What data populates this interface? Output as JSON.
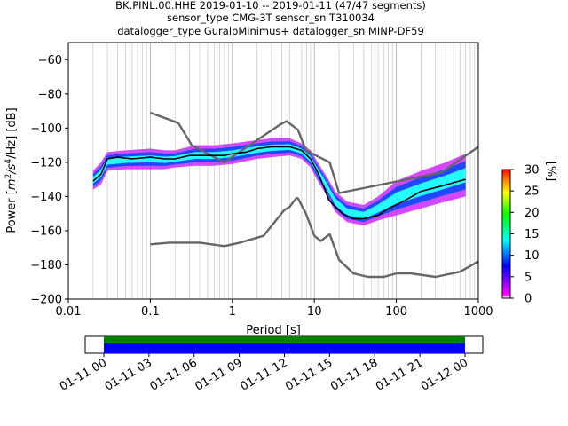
{
  "chart_data": [
    {
      "type": "heatmap",
      "title_lines": [
        "BK.PINL.00.HHE   2019-01-10 -- 2019-01-11  (47/47 segments)",
        "sensor_type CMG-3T sensor_sn T310034",
        "datalogger_type GuralpMinimus+ datalogger_sn MINP-DF59"
      ],
      "xlabel": "Period [s]",
      "ylabel_prefix": "Power [",
      "ylabel_math": "m",
      "ylabel_sup1": "2",
      "ylabel_mid": "/s",
      "ylabel_sup2": "4",
      "ylabel_suffix": "/Hz] [dB]",
      "x_scale": "log",
      "xlim": [
        0.01,
        1000
      ],
      "ylim": [
        -200,
        -50
      ],
      "x_ticks": [
        {
          "value": 0.01,
          "label": "0.01"
        },
        {
          "value": 0.1,
          "label": "0.1"
        },
        {
          "value": 1,
          "label": "1"
        },
        {
          "value": 10,
          "label": "10"
        },
        {
          "value": 100,
          "label": "100"
        },
        {
          "value": 1000,
          "label": "1000"
        }
      ],
      "y_ticks": [
        {
          "value": -60,
          "label": "−60"
        },
        {
          "value": -80,
          "label": "−80"
        },
        {
          "value": -100,
          "label": "−100"
        },
        {
          "value": -120,
          "label": "−120"
        },
        {
          "value": -140,
          "label": "−140"
        },
        {
          "value": -160,
          "label": "−160"
        },
        {
          "value": -180,
          "label": "−180"
        },
        {
          "value": -200,
          "label": "−200"
        }
      ],
      "grid": "vertical only",
      "colorbar": {
        "label": "[%]",
        "range": [
          0,
          30
        ],
        "ticks": [
          {
            "value": 0,
            "label": "0"
          },
          {
            "value": 5,
            "label": "5"
          },
          {
            "value": 10,
            "label": "10"
          },
          {
            "value": 15,
            "label": "15"
          },
          {
            "value": 20,
            "label": "20"
          },
          {
            "value": 25,
            "label": "25"
          },
          {
            "value": 30,
            "label": "30"
          }
        ],
        "colors": [
          "#ffffff",
          "#ff00ff",
          "#0000ff",
          "#00ffff",
          "#00ff00",
          "#ffff00",
          "#ff8000",
          "#ff0000"
        ]
      },
      "series": [
        {
          "name": "",
          "role": "new-high-noise-model",
          "color": "#666666",
          "points": [
            [
              0.1,
              -91
            ],
            [
              0.22,
              -97
            ],
            [
              0.32,
              -110
            ],
            [
              0.8,
              -120
            ],
            [
              3.8,
              -98
            ],
            [
              4.6,
              -96
            ],
            [
              6.3,
              -101
            ],
            [
              7.9,
              -113
            ],
            [
              15.4,
              -120
            ],
            [
              20,
              -138
            ],
            [
              354.8,
              -126
            ],
            [
              1000,
              -111
            ]
          ]
        },
        {
          "name": "",
          "role": "new-low-noise-model",
          "color": "#666666",
          "points": [
            [
              0.1,
              -168
            ],
            [
              0.17,
              -167
            ],
            [
              0.4,
              -167
            ],
            [
              0.8,
              -169
            ],
            [
              1.24,
              -167
            ],
            [
              2.4,
              -163
            ],
            [
              4.3,
              -148
            ],
            [
              5,
              -146
            ],
            [
              6,
              -141
            ],
            [
              6.3,
              -141
            ],
            [
              7.9,
              -150
            ],
            [
              10,
              -163
            ],
            [
              12,
              -166
            ],
            [
              15.4,
              -162
            ],
            [
              20,
              -177
            ],
            [
              30,
              -185
            ],
            [
              45,
              -187
            ],
            [
              70,
              -187
            ],
            [
              100,
              -185
            ],
            [
              150,
              -185
            ],
            [
              300,
              -187
            ],
            [
              600,
              -184
            ],
            [
              1000,
              -178
            ]
          ]
        },
        {
          "name": "",
          "role": "mode",
          "color": "#000000",
          "points": [
            [
              0.02,
              -131
            ],
            [
              0.025,
              -127
            ],
            [
              0.03,
              -118
            ],
            [
              0.04,
              -117
            ],
            [
              0.06,
              -118
            ],
            [
              0.1,
              -117
            ],
            [
              0.15,
              -118
            ],
            [
              0.2,
              -118
            ],
            [
              0.3,
              -116
            ],
            [
              0.5,
              -116
            ],
            [
              0.8,
              -116
            ],
            [
              1,
              -115
            ],
            [
              1.5,
              -114
            ],
            [
              2,
              -112
            ],
            [
              3,
              -111
            ],
            [
              5,
              -111
            ],
            [
              7,
              -113
            ],
            [
              9,
              -118
            ],
            [
              11,
              -126
            ],
            [
              13,
              -134
            ],
            [
              15,
              -142
            ],
            [
              18,
              -146
            ],
            [
              22,
              -150
            ],
            [
              30,
              -153
            ],
            [
              40,
              -153
            ],
            [
              60,
              -151
            ],
            [
              80,
              -147
            ],
            [
              120,
              -143
            ],
            [
              200,
              -137
            ],
            [
              350,
              -134
            ],
            [
              700,
              -130
            ]
          ]
        }
      ],
      "density_band": [
        {
          "period": 0.02,
          "low": -136,
          "high": -125
        },
        {
          "period": 0.025,
          "low": -133,
          "high": -120
        },
        {
          "period": 0.03,
          "low": -125,
          "high": -114
        },
        {
          "period": 0.05,
          "low": -124,
          "high": -113
        },
        {
          "period": 0.1,
          "low": -124,
          "high": -112
        },
        {
          "period": 0.15,
          "low": -124,
          "high": -113
        },
        {
          "period": 0.2,
          "low": -123,
          "high": -113
        },
        {
          "period": 0.35,
          "low": -122,
          "high": -110
        },
        {
          "period": 0.6,
          "low": -122,
          "high": -110
        },
        {
          "period": 1,
          "low": -121,
          "high": -109
        },
        {
          "period": 2,
          "low": -118,
          "high": -107
        },
        {
          "period": 3,
          "low": -117,
          "high": -106
        },
        {
          "period": 5,
          "low": -116,
          "high": -106
        },
        {
          "period": 7,
          "low": -118,
          "high": -109
        },
        {
          "period": 9,
          "low": -123,
          "high": -113
        },
        {
          "period": 11,
          "low": -131,
          "high": -120
        },
        {
          "period": 14,
          "low": -139,
          "high": -128
        },
        {
          "period": 18,
          "low": -149,
          "high": -137
        },
        {
          "period": 25,
          "low": -155,
          "high": -143
        },
        {
          "period": 40,
          "low": -157,
          "high": -145
        },
        {
          "period": 60,
          "low": -154,
          "high": -140
        },
        {
          "period": 100,
          "low": -151,
          "high": -131
        },
        {
          "period": 200,
          "low": -147,
          "high": -125
        },
        {
          "period": 400,
          "low": -143,
          "high": -120
        },
        {
          "period": 700,
          "low": -140,
          "high": -115
        }
      ]
    },
    {
      "type": "timeline",
      "description_axis": "data coverage",
      "x_ticks": [
        {
          "label": "01-11 00"
        },
        {
          "label": "01-11 03"
        },
        {
          "label": "01-11 06"
        },
        {
          "label": "01-11 09"
        },
        {
          "label": "01-11 12"
        },
        {
          "label": "01-11 15"
        },
        {
          "label": "01-11 18"
        },
        {
          "label": "01-11 21"
        },
        {
          "label": "01-12 00"
        }
      ],
      "coverage": [
        {
          "from": "01-11 00",
          "to": "01-12 00",
          "color": "#008000"
        },
        {
          "from": "01-11 00",
          "to": "01-12 00",
          "color": "#0000ff"
        }
      ]
    }
  ]
}
